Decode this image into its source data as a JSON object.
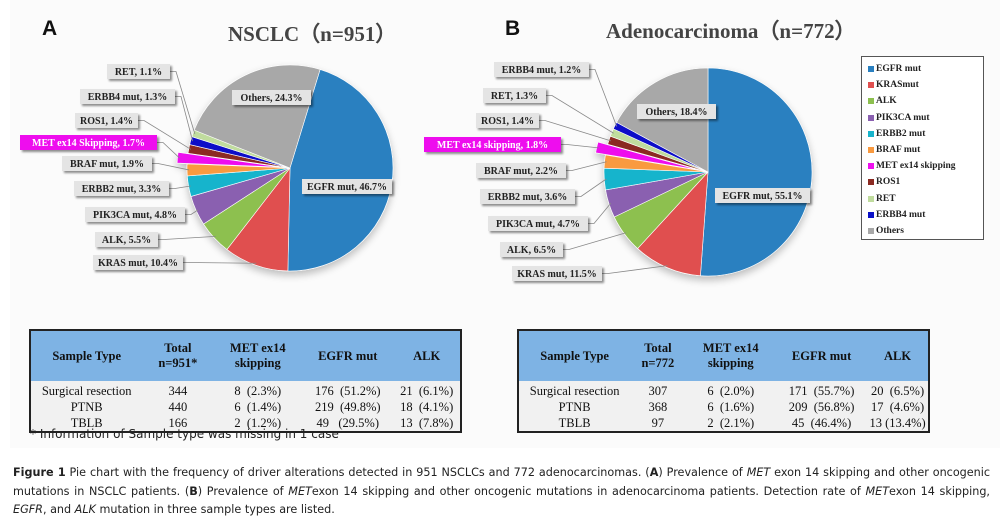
{
  "figure": {
    "panel_a_letter": "A",
    "panel_b_letter": "B",
    "legend": [
      {
        "label": "EGFR mut",
        "color": "#2a80c0"
      },
      {
        "label": "KRASmut",
        "color": "#e05050"
      },
      {
        "label": "ALK",
        "color": "#8dc050"
      },
      {
        "label": "PIK3CA mut",
        "color": "#8a60b0"
      },
      {
        "label": "ERBB2 mut",
        "color": "#18b4cc"
      },
      {
        "label": "BRAF mut",
        "color": "#f99a40"
      },
      {
        "label": "MET ex14 skipping",
        "color": "#ee10ee"
      },
      {
        "label": "ROS1",
        "color": "#8b2a22"
      },
      {
        "label": "RET",
        "color": "#c0dc9e"
      },
      {
        "label": "ERBB4 mut",
        "color": "#0a10c8"
      },
      {
        "label": "Others",
        "color": "#a8a8a8"
      }
    ],
    "highlight_color": "#ee10ee",
    "label_box_color": "#e4e4e4"
  },
  "chart_data": [
    {
      "type": "pie",
      "panel": "A",
      "title": "NSCLC（n=951）",
      "slices": [
        {
          "label": "EGFR mut",
          "value": 46.7,
          "text": "EGFR mut, 46.7%",
          "color": "#2a80c0"
        },
        {
          "label": "KRAS mut",
          "value": 10.4,
          "text": "KRAS mut, 10.4%",
          "color": "#e05050"
        },
        {
          "label": "ALK",
          "value": 5.5,
          "text": "ALK,  5.5%",
          "color": "#8dc050"
        },
        {
          "label": "PIK3CA mut",
          "value": 4.8,
          "text": "PIK3CA  mut, 4.8%",
          "color": "#8a60b0"
        },
        {
          "label": "ERBB2 mut",
          "value": 3.3,
          "text": "ERBB2  mut, 3.3%",
          "color": "#18b4cc"
        },
        {
          "label": "BRAF mut",
          "value": 1.9,
          "text": "BRAF  mut, 1.9%",
          "color": "#f99a40"
        },
        {
          "label": "MET ex14 Skipping",
          "value": 1.7,
          "text": "MET  ex14 Skipping, 1.7%",
          "color": "#ee10ee",
          "exploded": true
        },
        {
          "label": "ROS1",
          "value": 1.4,
          "text": "ROS1, 1.4%",
          "color": "#8b2a22"
        },
        {
          "label": "ERBB4 mut",
          "value": 1.3,
          "text": "ERBB4  mut, 1.3%",
          "color": "#0a10c8"
        },
        {
          "label": "RET",
          "value": 1.1,
          "text": "RET,  1.1%",
          "color": "#c0dc9e"
        },
        {
          "label": "Others",
          "value": 24.3,
          "text": "Others, 24.3%",
          "color": "#a8a8a8"
        }
      ]
    },
    {
      "type": "pie",
      "panel": "B",
      "title": "Adenocarcinoma（n=772）",
      "slices": [
        {
          "label": "EGFR mut",
          "value": 55.1,
          "text": "EGFR  mut, 55.1%",
          "color": "#2a80c0"
        },
        {
          "label": "KRAS mut",
          "value": 11.5,
          "text": "KRAS mut, 11.5%",
          "color": "#e05050"
        },
        {
          "label": "ALK",
          "value": 6.5,
          "text": "ALK,  6.5%",
          "color": "#8dc050"
        },
        {
          "label": "PIK3CA mut",
          "value": 4.7,
          "text": "PIK3CA  mut, 4.7%",
          "color": "#8a60b0"
        },
        {
          "label": "ERBB2 mut",
          "value": 3.6,
          "text": "ERBB2  mut, 3.6%",
          "color": "#18b4cc"
        },
        {
          "label": "BRAF mut",
          "value": 2.2,
          "text": "BRAF  mut, 2.2%",
          "color": "#f99a40"
        },
        {
          "label": "MET ex14 skipping",
          "value": 1.8,
          "text": "MET  ex14 skipping, 1.8%",
          "color": "#ee10ee",
          "exploded": true
        },
        {
          "label": "ROS1",
          "value": 1.4,
          "text": "ROS1, 1.4%",
          "color": "#8b2a22"
        },
        {
          "label": "RET",
          "value": 1.3,
          "text": "RET,  1.3%",
          "color": "#c0dc9e"
        },
        {
          "label": "ERBB4 mut",
          "value": 1.2,
          "text": "ERBB4  mut, 1.2%",
          "color": "#0a10c8"
        },
        {
          "label": "Others",
          "value": 18.4,
          "text": "Others, 18.4%",
          "color": "#a8a8a8"
        }
      ]
    },
    {
      "type": "table",
      "panel": "A",
      "columns": [
        "Sample Type",
        "Total\nn=951*",
        "MET ex14\nskipping",
        "EGFR mut",
        "ALK"
      ],
      "rows": [
        [
          "Surgical resection",
          "344",
          "8  (2.3%)",
          "176  (51.2%)",
          "21  (6.1%)"
        ],
        [
          "PTNB",
          "440",
          "6  (1.4%)",
          "219  (49.8%)",
          "18  (4.1%)"
        ],
        [
          "TBLB",
          "166",
          "2  (1.2%)",
          "49   (29.5%)",
          "13  (7.8%)"
        ]
      ],
      "footnote": "* Information of Sample type was missing in 1 case"
    },
    {
      "type": "table",
      "panel": "B",
      "columns": [
        "Sample Type",
        "Total\nn=772",
        "MET ex14\nskipping",
        "EGFR mut",
        "ALK"
      ],
      "rows": [
        [
          "Surgical resection",
          "307",
          "6  (2.0%)",
          "171  (55.7%)",
          "20  (6.5%)"
        ],
        [
          "PTNB",
          "368",
          "6  (1.6%)",
          "209  (56.8%)",
          "17  (4.6%)"
        ],
        [
          "TBLB",
          "97",
          "2  (2.1%)",
          "45  (46.4%)",
          "13 (13.4%)"
        ]
      ]
    }
  ],
  "caption": {
    "label": "Figure 1",
    "segments": [
      {
        "t": " Pie chart with the frequency of driver alterations detected in 951 NSCLCs and 772 adenocarcinomas. (",
        "s": ""
      },
      {
        "t": "A",
        "s": "b"
      },
      {
        "t": ") Prevalence of ",
        "s": ""
      },
      {
        "t": "MET",
        "s": "i"
      },
      {
        "t": " exon 14 skipping and other oncogenic mutations in NSCLC patients. (",
        "s": ""
      },
      {
        "t": "B",
        "s": "b"
      },
      {
        "t": ") Prevalence of ",
        "s": ""
      },
      {
        "t": "MET",
        "s": "i"
      },
      {
        "t": "exon 14 skipping and other oncogenic mutations in adenocarcinoma patients. Detection rate of ",
        "s": ""
      },
      {
        "t": "MET",
        "s": "i"
      },
      {
        "t": "exon 14 skipping, ",
        "s": ""
      },
      {
        "t": "EGFR",
        "s": "i"
      },
      {
        "t": ", and ",
        "s": ""
      },
      {
        "t": "ALK",
        "s": "i"
      },
      {
        "t": " mutation in three sample types are listed.",
        "s": ""
      }
    ]
  }
}
